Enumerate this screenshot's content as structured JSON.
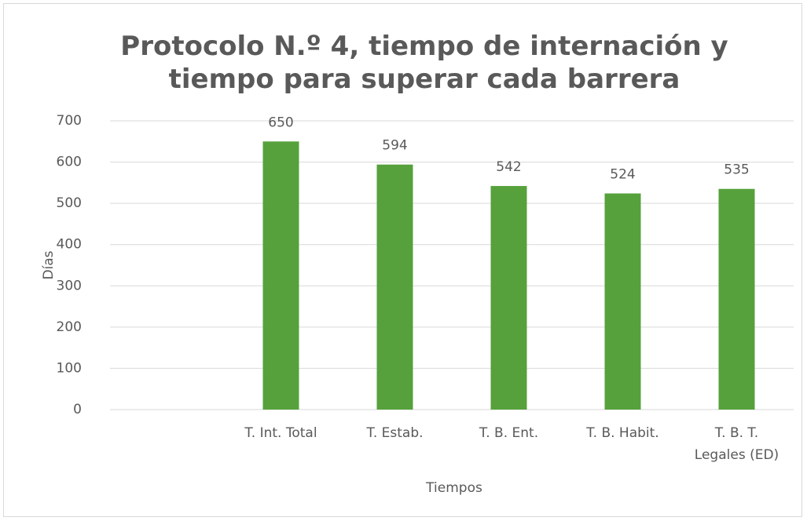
{
  "chart_data": {
    "type": "bar",
    "title": "Protocolo N.º 4, tiempo de internación y\ntiempo para superar cada barrera",
    "categories": [
      null,
      "T. Int. Total",
      "T. Estab.",
      "T. B. Ent.",
      "T. B. Habit.",
      "T. B. T.\nLegales (ED)"
    ],
    "values": [
      null,
      650,
      594,
      542,
      524,
      535
    ],
    "color": "#56a13c",
    "xlabel": "Tiempos",
    "ylabel": "Días",
    "ylim": [
      0,
      700
    ],
    "yticks": [
      0,
      100,
      200,
      300,
      400,
      500,
      600,
      700
    ],
    "grid": true
  }
}
